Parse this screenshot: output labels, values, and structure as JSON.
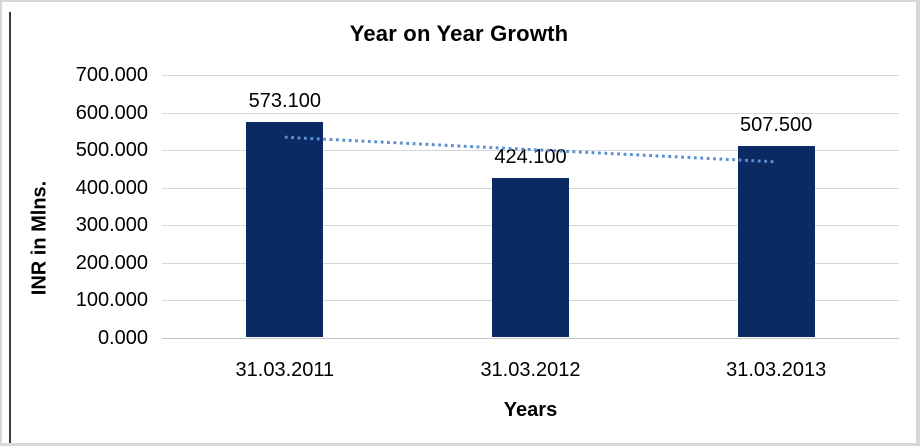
{
  "chart_data": {
    "type": "bar",
    "title": "Year on Year Growth",
    "xlabel": "Years",
    "ylabel": "INR in Mlns.",
    "categories": [
      "31.03.2011",
      "31.03.2012",
      "31.03.2013"
    ],
    "values": [
      573.1,
      424.1,
      507.5
    ],
    "data_labels": [
      "573.100",
      "424.100",
      "507.500"
    ],
    "yticks": [
      "700.000",
      "600.000",
      "500.000",
      "400.000",
      "300.000",
      "200.000",
      "100.000",
      "0.000"
    ],
    "ylim": [
      0,
      700
    ],
    "grid": true,
    "legend": false,
    "bar_color": "#0b2a63",
    "gridline_color": "#d6d6d6",
    "trendline": {
      "type": "linear",
      "style": "dotted",
      "color": "#5b8fd0",
      "start_value": 534.4,
      "end_value": 468.8
    }
  }
}
